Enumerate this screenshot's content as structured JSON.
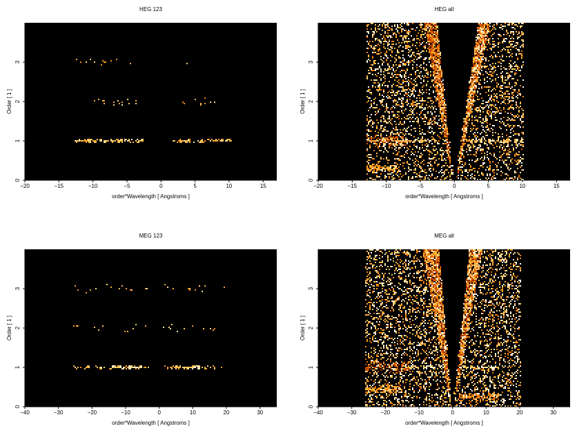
{
  "chart_data": [
    {
      "type": "heatmap",
      "title": "HEG 123",
      "xlabel": "order*Wavelength [ Angstroms ]",
      "ylabel": "Order [ 1 ]",
      "xlim": [
        -20,
        17
      ],
      "ylim": [
        0,
        4
      ],
      "xticks": [
        -20,
        -15,
        -10,
        -5,
        0,
        5,
        10,
        15
      ],
      "yticks": [
        0,
        1,
        2,
        3
      ],
      "background": "#000000",
      "colormap": [
        "#000000",
        "#5a1400",
        "#b43c00",
        "#f07800",
        "#ffc850",
        "#ffffff"
      ],
      "events": [
        {
          "x": [
            -12.7,
            -2.6
          ],
          "order": 1,
          "density": 0.75,
          "spread": 0.05,
          "level": 0.95
        },
        {
          "x": [
            1.7,
            10.5
          ],
          "order": 1,
          "density": 0.65,
          "spread": 0.05,
          "level": 0.95
        },
        {
          "x": [
            -11.5,
            -3.5
          ],
          "order": 2,
          "density": 0.08,
          "spread": 0.1,
          "level": 0.9
        },
        {
          "x": [
            2,
            8.6
          ],
          "order": 2,
          "density": 0.06,
          "spread": 0.1,
          "level": 0.9
        },
        {
          "x": [
            -12.5,
            -3.2
          ],
          "order": 3,
          "density": 0.07,
          "spread": 0.1,
          "level": 0.9
        },
        {
          "x": [
            3.5,
            10
          ],
          "order": 3,
          "density": 0.04,
          "spread": 0.1,
          "level": 0.9
        }
      ]
    },
    {
      "type": "heatmap",
      "title": "HEG all",
      "xlabel": "order*Wavelength [ Angstroms ]",
      "ylabel": "Order [ 1 ]",
      "xlim": [
        -20,
        17
      ],
      "ylim": [
        0,
        4
      ],
      "xticks": [
        -20,
        -15,
        -10,
        -5,
        0,
        5,
        10,
        15
      ],
      "yticks": [
        0,
        1,
        2,
        3
      ],
      "background": "#000000",
      "colormap": [
        "#000000",
        "#5a1400",
        "#b43c00",
        "#f07800",
        "#ffc850",
        "#ffffff"
      ],
      "noise": {
        "xleft": -13,
        "xright": 10.2,
        "density": 0.24
      },
      "wedges": [
        {
          "apex": [
            -0.3,
            0
          ],
          "top": [
            -4.5,
            -2.5
          ],
          "density": 0.9,
          "level": 0.6
        },
        {
          "apex": [
            0.3,
            0
          ],
          "top": [
            3.5,
            5.3
          ],
          "density": 0.9,
          "level": 0.7
        }
      ],
      "gap": {
        "apex": [
          0,
          0
        ],
        "top": [
          -2.5,
          3.5
        ]
      },
      "events": [
        {
          "x": [
            -13,
            -7
          ],
          "order": 1,
          "density": 0.5,
          "spread": 0.15,
          "level": 0.5
        },
        {
          "x": [
            -12.7,
            -2.6
          ],
          "order": 1,
          "density": 0.6,
          "spread": 0.04,
          "level": 0.95
        },
        {
          "x": [
            1.7,
            10.2
          ],
          "order": 1,
          "density": 0.55,
          "spread": 0.04,
          "level": 0.95
        },
        {
          "x": [
            -13,
            -8
          ],
          "order": 0.3,
          "density": 0.8,
          "spread": 0.1,
          "level": 0.8
        }
      ]
    },
    {
      "type": "heatmap",
      "title": "MEG 123",
      "xlabel": "order*Wavelength [ Angstroms ]",
      "ylabel": "Order [ 1 ]",
      "xlim": [
        -40,
        35
      ],
      "ylim": [
        0,
        4
      ],
      "xticks": [
        -40,
        -30,
        -20,
        -10,
        0,
        10,
        20,
        30
      ],
      "yticks": [
        0,
        1,
        2,
        3
      ],
      "background": "#000000",
      "colormap": [
        "#000000",
        "#5a1400",
        "#b43c00",
        "#f07800",
        "#ffc850",
        "#ffffff"
      ],
      "events": [
        {
          "x": [
            -26,
            -2
          ],
          "order": 1,
          "density": 0.3,
          "spread": 0.05,
          "level": 0.9
        },
        {
          "x": [
            -14,
            -5
          ],
          "order": 1,
          "density": 0.85,
          "spread": 0.05,
          "level": 1.0
        },
        {
          "x": [
            1,
            19
          ],
          "order": 1,
          "density": 0.35,
          "spread": 0.05,
          "level": 0.9
        },
        {
          "x": [
            5,
            12
          ],
          "order": 1,
          "density": 0.8,
          "spread": 0.05,
          "level": 1.0
        },
        {
          "x": [
            -26,
            -3
          ],
          "order": 2,
          "density": 0.06,
          "spread": 0.12,
          "level": 0.9
        },
        {
          "x": [
            1,
            19
          ],
          "order": 2,
          "density": 0.05,
          "spread": 0.12,
          "level": 0.9
        },
        {
          "x": [
            -26,
            -3
          ],
          "order": 3,
          "density": 0.06,
          "spread": 0.12,
          "level": 0.9
        },
        {
          "x": [
            1,
            20
          ],
          "order": 3,
          "density": 0.05,
          "spread": 0.12,
          "level": 0.9
        }
      ]
    },
    {
      "type": "heatmap",
      "title": "MEG all",
      "xlabel": "order*Wavelength [ Angstroms ]",
      "ylabel": "Order [ 1 ]",
      "xlim": [
        -40,
        35
      ],
      "ylim": [
        0,
        4
      ],
      "xticks": [
        -40,
        -30,
        -20,
        -10,
        0,
        10,
        20,
        30
      ],
      "yticks": [
        0,
        1,
        2,
        3
      ],
      "background": "#000000",
      "colormap": [
        "#000000",
        "#5a1400",
        "#b43c00",
        "#f07800",
        "#ffc850",
        "#ffffff"
      ],
      "noise": {
        "xleft": -26,
        "xright": 20.5,
        "density": 0.26
      },
      "wedges": [
        {
          "apex": [
            -0.5,
            0
          ],
          "top": [
            -9,
            -4
          ],
          "density": 0.9,
          "level": 0.6
        },
        {
          "apex": [
            0.5,
            0
          ],
          "top": [
            5,
            9
          ],
          "density": 0.9,
          "level": 0.7
        }
      ],
      "gap": {
        "apex": [
          0,
          0
        ],
        "top": [
          -4,
          5
        ]
      },
      "events": [
        {
          "x": [
            -26,
            -12
          ],
          "order": 1,
          "density": 0.45,
          "spread": 0.15,
          "level": 0.5
        },
        {
          "x": [
            -14,
            -5
          ],
          "order": 1,
          "density": 0.75,
          "spread": 0.04,
          "level": 1.0
        },
        {
          "x": [
            3,
            14
          ],
          "order": 1,
          "density": 0.7,
          "spread": 0.04,
          "level": 1.0
        },
        {
          "x": [
            -26,
            -15
          ],
          "order": 0.45,
          "density": 0.8,
          "spread": 0.1,
          "level": 0.8
        },
        {
          "x": [
            2,
            14
          ],
          "order": 0.25,
          "density": 0.6,
          "spread": 0.1,
          "level": 0.7
        }
      ]
    }
  ]
}
